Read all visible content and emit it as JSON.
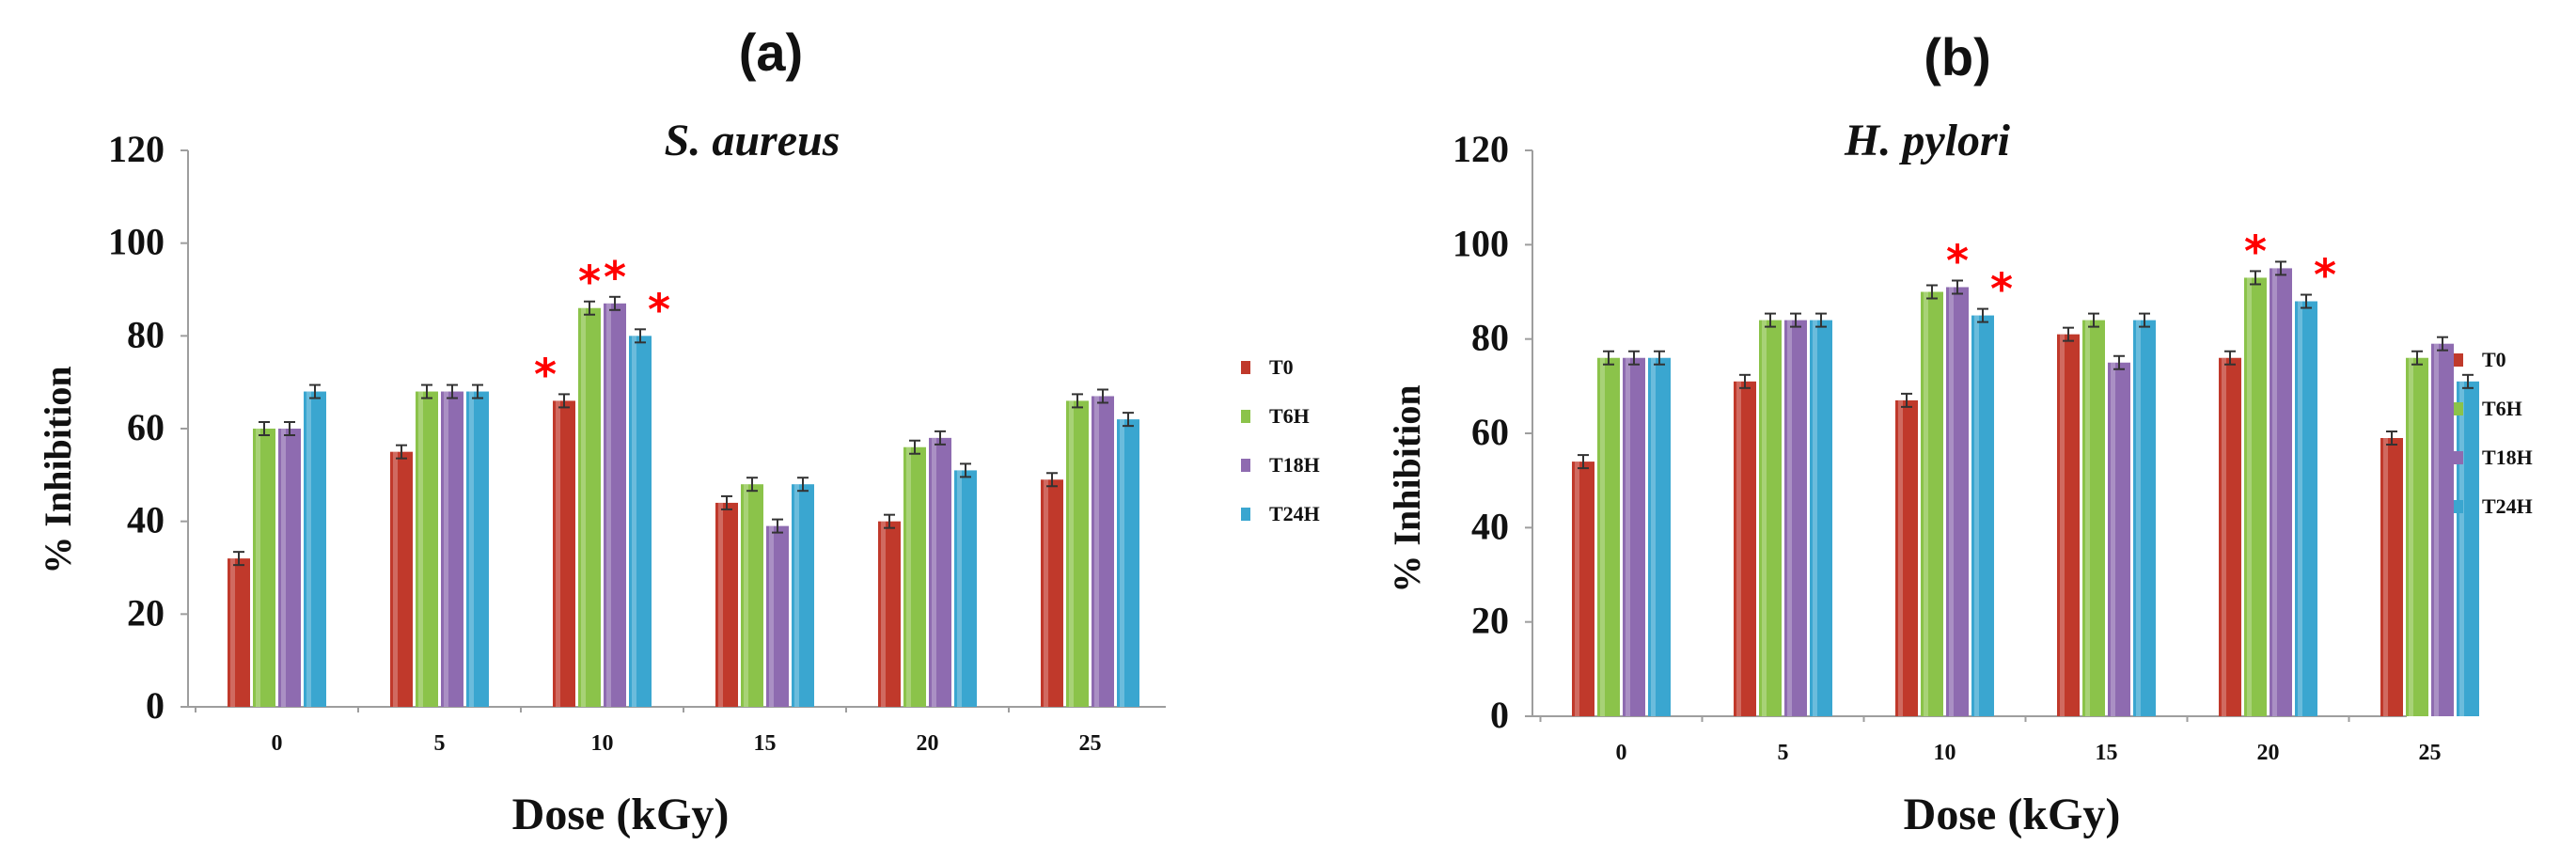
{
  "colors": {
    "T0": "#c0392b",
    "T6H": "#8bc34a",
    "T18H": "#8e6bb0",
    "T24H": "#3aa6d0",
    "star": "#ff0000"
  },
  "chart_data": [
    {
      "panel": "(a)",
      "type": "bar",
      "title": "S. aureus",
      "xlabel": "Dose (kGy)",
      "ylabel": "% Inhibition",
      "ylim": [
        0,
        120
      ],
      "yticks": [
        "0",
        "20",
        "40",
        "60",
        "80",
        "100",
        "120"
      ],
      "categories": [
        "0",
        "5",
        "10",
        "15",
        "20",
        "25"
      ],
      "legend_position": "right",
      "series": [
        {
          "name": "T0",
          "values": [
            32,
            55,
            66,
            44,
            40,
            49
          ]
        },
        {
          "name": "T6H",
          "values": [
            60,
            68,
            86,
            48,
            56,
            66
          ]
        },
        {
          "name": "T18H",
          "values": [
            60,
            68,
            87,
            39,
            58,
            67
          ]
        },
        {
          "name": "T24H",
          "values": [
            68,
            68,
            80,
            48,
            51,
            62
          ]
        }
      ],
      "significance": [
        {
          "category": "10",
          "series": "T0"
        },
        {
          "category": "10",
          "series": "T6H"
        },
        {
          "category": "10",
          "series": "T18H"
        },
        {
          "category": "10",
          "series": "T24H"
        }
      ]
    },
    {
      "panel": "(b)",
      "type": "bar",
      "title": "H. pylori",
      "xlabel": "Dose (kGy)",
      "ylabel": "% Inhibition",
      "ylim": [
        0,
        120
      ],
      "yticks": [
        "0",
        "20",
        "40",
        "60",
        "80",
        "100",
        "120"
      ],
      "categories": [
        "0",
        "5",
        "10",
        "15",
        "20",
        "25"
      ],
      "legend_position": "right",
      "series": [
        {
          "name": "T0",
          "values": [
            54,
            71,
            67,
            81,
            76,
            59
          ]
        },
        {
          "name": "T6H",
          "values": [
            76,
            84,
            90,
            84,
            93,
            76
          ]
        },
        {
          "name": "T18H",
          "values": [
            76,
            84,
            91,
            75,
            95,
            79
          ]
        },
        {
          "name": "T24H",
          "values": [
            76,
            84,
            85,
            84,
            88,
            71
          ]
        }
      ],
      "significance": [
        {
          "category": "10",
          "series": "T18H"
        },
        {
          "category": "10",
          "series": "T24H"
        },
        {
          "category": "20",
          "series": "T6H"
        },
        {
          "category": "20",
          "series": "T24H"
        }
      ]
    }
  ]
}
